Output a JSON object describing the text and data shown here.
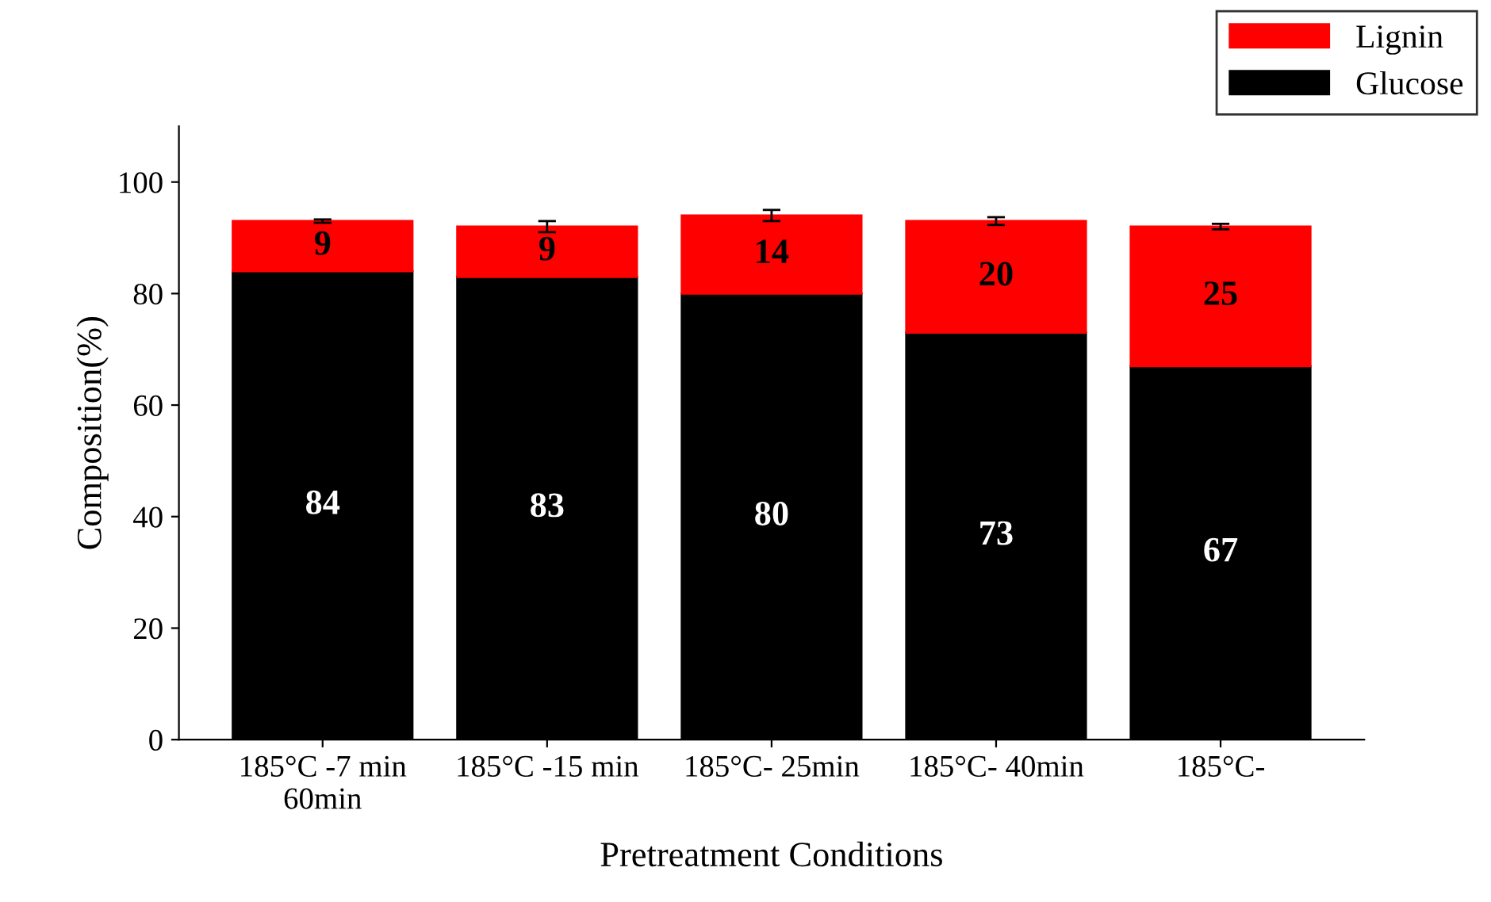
{
  "chart_data": {
    "type": "bar",
    "stacked": true,
    "xlabel": "Pretreatment Conditions",
    "ylabel": "Composition(%)",
    "categories": [
      "185°C -7 min\n60min",
      "185°C -15 min",
      "185°C- 25min",
      "185°C- 40min",
      "185°C-"
    ],
    "series": [
      {
        "name": "Glucose",
        "color": "#000000",
        "values": [
          84,
          83,
          80,
          73,
          67
        ]
      },
      {
        "name": "Lignin",
        "color": "#ff0000",
        "values": [
          9,
          9,
          14,
          20,
          25
        ],
        "errors": [
          0.3,
          1,
          1,
          0.7,
          0.5
        ]
      }
    ],
    "ylim": [
      0,
      110
    ],
    "yticks": [
      0,
      20,
      40,
      60,
      80,
      100
    ],
    "data_labels": true,
    "legend": "top right",
    "grid": false
  }
}
